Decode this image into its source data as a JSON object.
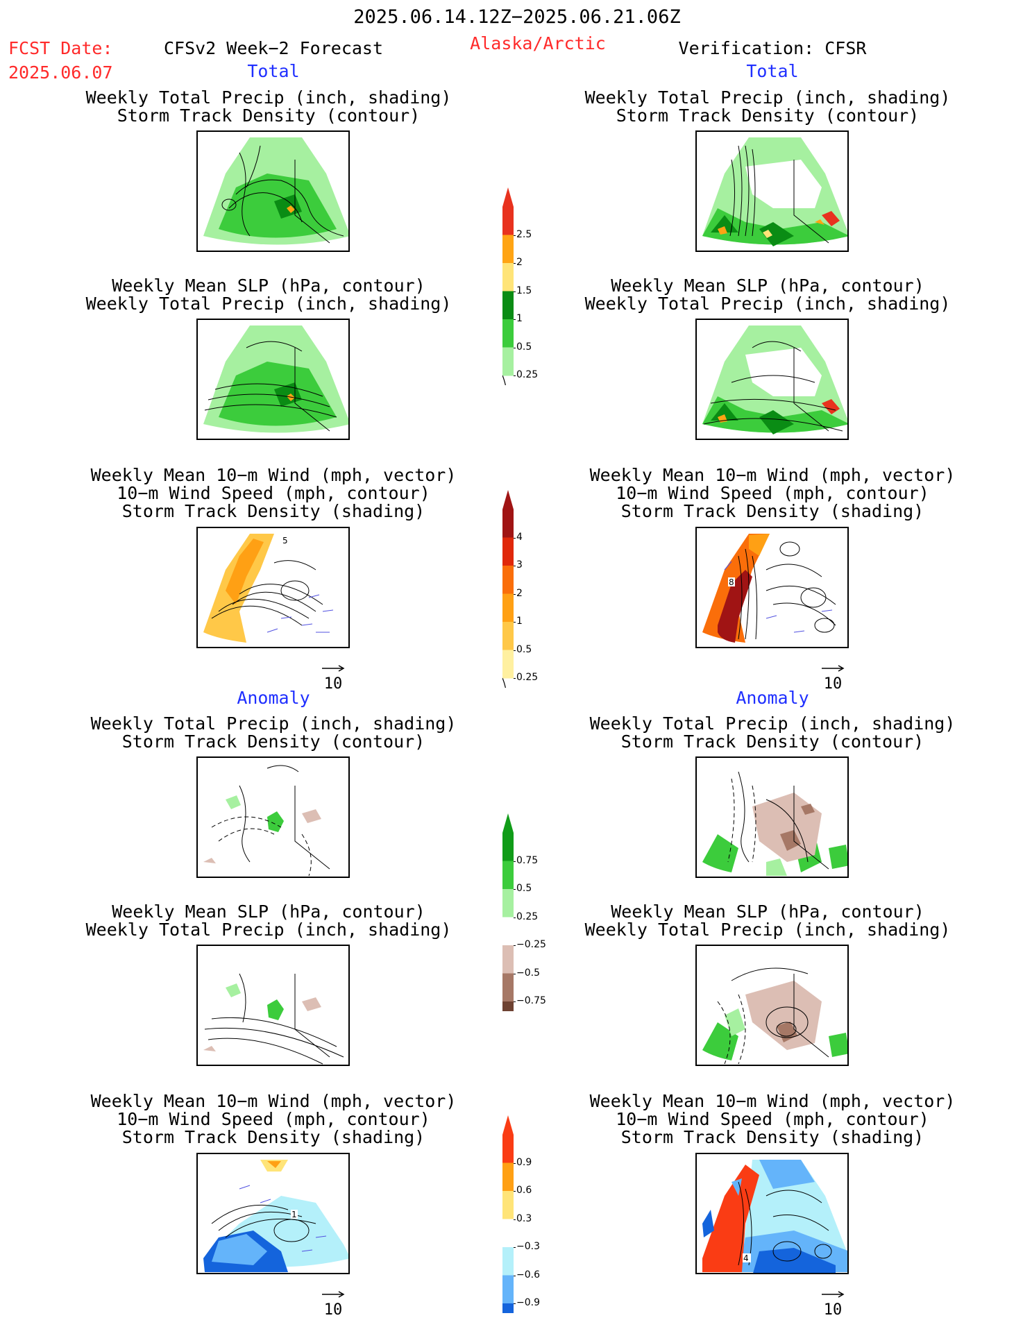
{
  "header": {
    "period": "2025.06.14.12Z−2025.06.21.06Z",
    "fcst_label": "FCST Date:",
    "fcst_date": "2025.06.07",
    "model": "CFSv2 Week−2 Forecast",
    "region": "Alaska/Arctic",
    "verification": "Verification: CFSR"
  },
  "sections": {
    "total": "Total",
    "anomaly": "Anomaly"
  },
  "panel_titles": {
    "precip_storm": [
      "Weekly Total Precip (inch, shading)",
      "Storm Track Density (contour)"
    ],
    "slp_precip": [
      "Weekly Mean SLP (hPa, contour)",
      "Weekly Total Precip (inch, shading)"
    ],
    "wind_storm": [
      "Weekly Mean 10−m Wind (mph, vector)",
      "10−m Wind Speed (mph, contour)",
      "Storm Track Density (shading)"
    ]
  },
  "vector_ref": "10",
  "colorbars": {
    "precip_total": {
      "labels": [
        "2.5",
        "2",
        "1.5",
        "1",
        "0.5",
        "0.25"
      ],
      "colors": [
        "#e8321e",
        "#ffa414",
        "#ffe478",
        "#0a8c14",
        "#3ccc3c",
        "#a6f0a0"
      ]
    },
    "storm_total": {
      "labels": [
        "4",
        "3",
        "2",
        "1",
        "0.5",
        "0.25"
      ],
      "colors": [
        "#a01414",
        "#e0280a",
        "#fa6e0a",
        "#ffa014",
        "#ffc848",
        "#fff0a0"
      ]
    },
    "precip_anom": {
      "labels": [
        "0.75",
        "0.5",
        "0.25",
        "−0.25",
        "−0.5",
        "−0.75"
      ],
      "colors": [
        "#109c18",
        "#3ccc3c",
        "#a6f0a0",
        "#ffffff",
        "#dcbeb4",
        "#a67866",
        "#6e4232"
      ]
    },
    "storm_anom": {
      "labels": [
        "0.9",
        "0.6",
        "0.3",
        "−0.3",
        "−0.6",
        "−0.9"
      ],
      "colors": [
        "#fa3c14",
        "#ffa014",
        "#ffe478",
        "#ffffff",
        "#b4f0fa",
        "#64b4fa",
        "#1464dc"
      ]
    }
  },
  "contour_labels": {
    "fc_wind_total": "5",
    "ob_wind_total": "8",
    "fc_wind_anom": "1",
    "ob_wind_anom": "4"
  }
}
